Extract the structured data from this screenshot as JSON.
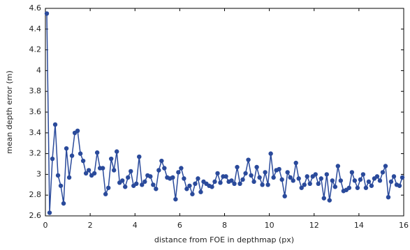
{
  "chart_data": {
    "type": "line",
    "xlabel": "distance from FOE in depthmap (px)",
    "ylabel": "mean depth error (m)",
    "xlim": [
      0,
      16
    ],
    "ylim": [
      2.6,
      4.6
    ],
    "xticks": [
      0,
      2,
      4,
      6,
      8,
      10,
      12,
      14,
      16
    ],
    "yticks": [
      2.6,
      2.8,
      3,
      3.2,
      3.4,
      3.6,
      3.8,
      4,
      4.2,
      4.4,
      4.6
    ],
    "x": [
      0.0625,
      0.1875,
      0.3125,
      0.4375,
      0.5625,
      0.6875,
      0.8125,
      0.9375,
      1.0625,
      1.1875,
      1.3125,
      1.4375,
      1.5625,
      1.6875,
      1.8125,
      1.9375,
      2.0625,
      2.1875,
      2.3125,
      2.4375,
      2.5625,
      2.6875,
      2.8125,
      2.9375,
      3.0625,
      3.1875,
      3.3125,
      3.4375,
      3.5625,
      3.6875,
      3.8125,
      3.9375,
      4.0625,
      4.1875,
      4.3125,
      4.4375,
      4.5625,
      4.6875,
      4.8125,
      4.9375,
      5.0625,
      5.1875,
      5.3125,
      5.4375,
      5.5625,
      5.6875,
      5.8125,
      5.9375,
      6.0625,
      6.1875,
      6.3125,
      6.4375,
      6.5625,
      6.6875,
      6.8125,
      6.9375,
      7.0625,
      7.1875,
      7.3125,
      7.4375,
      7.5625,
      7.6875,
      7.8125,
      7.9375,
      8.0625,
      8.1875,
      8.3125,
      8.4375,
      8.5625,
      8.6875,
      8.8125,
      8.9375,
      9.0625,
      9.1875,
      9.3125,
      9.4375,
      9.5625,
      9.6875,
      9.8125,
      9.9375,
      10.0625,
      10.1875,
      10.3125,
      10.4375,
      10.5625,
      10.6875,
      10.8125,
      10.9375,
      11.0625,
      11.1875,
      11.3125,
      11.4375,
      11.5625,
      11.6875,
      11.8125,
      11.9375,
      12.0625,
      12.1875,
      12.3125,
      12.4375,
      12.5625,
      12.6875,
      12.8125,
      12.9375,
      13.0625,
      13.1875,
      13.3125,
      13.4375,
      13.5625,
      13.6875,
      13.8125,
      13.9375,
      14.0625,
      14.1875,
      14.3125,
      14.4375,
      14.5625,
      14.6875,
      14.8125,
      14.9375,
      15.0625,
      15.1875,
      15.3125,
      15.4375,
      15.5625,
      15.6875,
      15.8125,
      15.9375
    ],
    "series": [
      {
        "color": "#2a4a9b",
        "values": [
          4.55,
          2.63,
          3.15,
          3.48,
          2.99,
          2.89,
          2.72,
          3.25,
          2.97,
          3.18,
          3.4,
          3.42,
          3.2,
          3.13,
          3.01,
          3.04,
          2.99,
          3.01,
          3.21,
          3.06,
          3.06,
          2.81,
          2.87,
          3.15,
          3.04,
          3.22,
          2.92,
          2.94,
          2.88,
          2.97,
          3.03,
          2.89,
          2.91,
          3.17,
          2.9,
          2.93,
          2.99,
          2.98,
          2.9,
          2.86,
          3.04,
          3.13,
          3.06,
          2.97,
          2.96,
          2.97,
          2.76,
          3.02,
          3.06,
          2.96,
          2.86,
          2.89,
          2.81,
          2.91,
          2.96,
          2.83,
          2.93,
          2.91,
          2.89,
          2.88,
          2.93,
          3.01,
          2.92,
          2.98,
          2.98,
          2.93,
          2.94,
          2.91,
          3.07,
          2.91,
          2.95,
          3.01,
          3.14,
          2.99,
          2.93,
          3.07,
          2.97,
          2.9,
          3.02,
          2.9,
          3.2,
          2.97,
          3.04,
          3.05,
          2.95,
          2.79,
          3.02,
          2.97,
          2.94,
          3.11,
          2.96,
          2.87,
          2.9,
          2.98,
          2.91,
          2.98,
          3.0,
          2.91,
          2.96,
          2.77,
          3.0,
          2.75,
          2.94,
          2.88,
          3.08,
          2.94,
          2.84,
          2.85,
          2.87,
          3.02,
          2.94,
          2.87,
          2.95,
          3.0,
          2.87,
          2.93,
          2.89,
          2.96,
          2.98,
          2.94,
          3.02,
          3.08,
          2.78,
          2.93,
          2.98,
          2.9,
          2.89,
          2.97
        ]
      }
    ]
  }
}
